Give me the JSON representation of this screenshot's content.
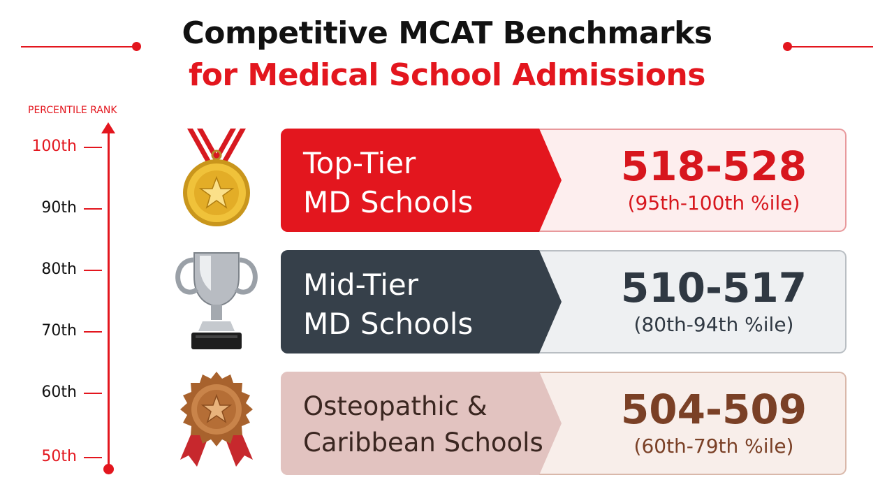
{
  "header": {
    "title_line1": "Competitive MCAT Benchmarks",
    "title_line2": "for Medical School Admissions"
  },
  "axis": {
    "label": "PERCENTILE RANK",
    "ticks": [
      "100th",
      "90th",
      "80th",
      "70th",
      "60th",
      "50th"
    ]
  },
  "tiers": [
    {
      "name_line1": "Top-Tier",
      "name_line2": "MD Schools",
      "score_range": "518-528",
      "percentile": "(95th-100th %ile)",
      "icon": "gold-medal-icon"
    },
    {
      "name_line1": "Mid-Tier",
      "name_line2": "MD Schools",
      "score_range": "510-517",
      "percentile": "(80th-94th %ile)",
      "icon": "silver-trophy-icon"
    },
    {
      "name_line1": "Osteopathic &",
      "name_line2": "Caribbean Schools",
      "score_range": "504-509",
      "percentile": "(60th-79th %ile)",
      "icon": "bronze-rosette-icon"
    }
  ],
  "colors": {
    "accent": "#e3161e",
    "top_tier": "#e3161e",
    "mid_tier": "#36404a",
    "osteo_tier": "#e2c3c0"
  }
}
